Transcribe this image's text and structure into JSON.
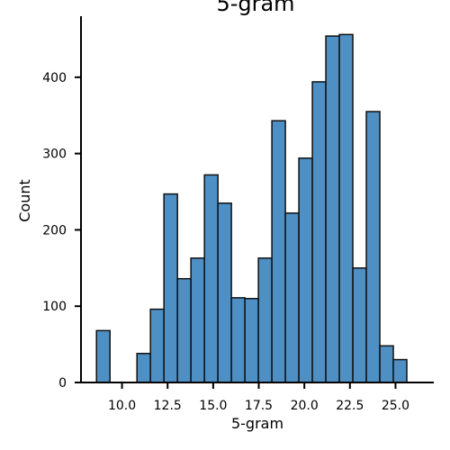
{
  "chart_data": {
    "type": "bar",
    "title": "5-gram",
    "xlabel": "5-gram",
    "ylabel": "Count",
    "xlim": [
      7.75,
      27.1
    ],
    "ylim": [
      0,
      480
    ],
    "x_ticks": [
      10.0,
      12.5,
      15.0,
      17.5,
      20.0,
      22.5,
      25.0
    ],
    "x_tick_labels": [
      "10.0",
      "12.5",
      "15.0",
      "17.5",
      "20.0",
      "22.5",
      "25.0"
    ],
    "y_ticks": [
      0,
      100,
      200,
      300,
      400
    ],
    "y_tick_labels": [
      "0",
      "100",
      "200",
      "300",
      "400"
    ],
    "bin_start": 8.6,
    "bin_width": 0.74,
    "values": [
      68,
      0,
      0,
      38,
      96,
      247,
      136,
      163,
      272,
      235,
      111,
      110,
      163,
      343,
      222,
      294,
      394,
      454,
      456,
      150,
      355,
      48,
      30
    ],
    "bar_color": "#4e8fc4",
    "grid": false
  }
}
